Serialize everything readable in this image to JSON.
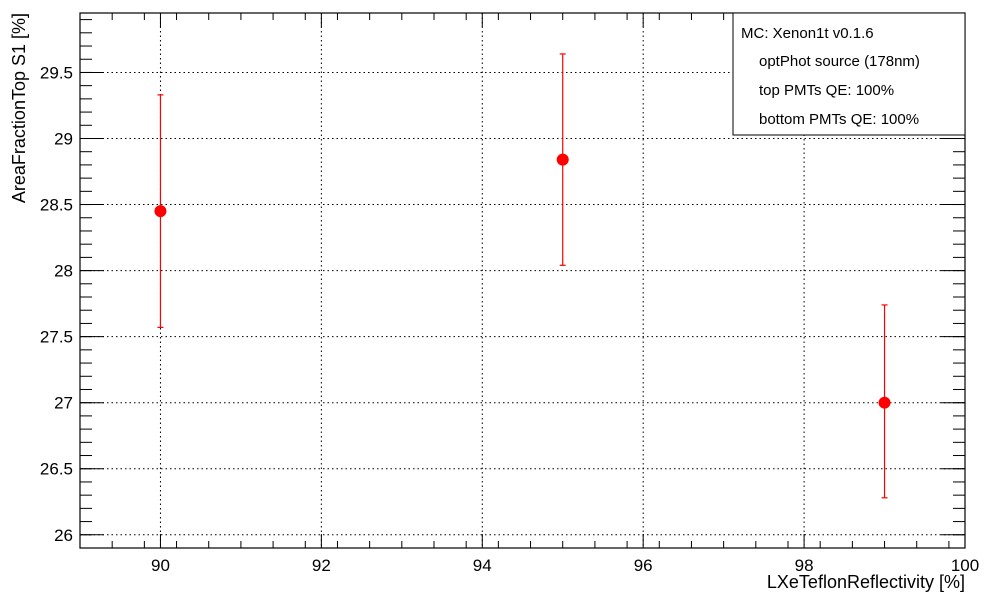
{
  "chart_data": {
    "type": "scatter",
    "xlabel": "LXeTeflonReflectivity [%]",
    "ylabel": "AreaFractionTop S1 [%]",
    "xlim": [
      89,
      100
    ],
    "ylim": [
      25.9,
      29.95
    ],
    "x_ticks": [
      90,
      92,
      94,
      96,
      98,
      100
    ],
    "x_tick_labels": [
      "90",
      "92",
      "94",
      "96",
      "98",
      "100"
    ],
    "y_ticks": [
      26,
      26.5,
      27,
      27.5,
      28,
      28.5,
      29,
      29.5
    ],
    "y_tick_labels": [
      "26",
      "26.5",
      "27",
      "27.5",
      "28",
      "28.5",
      "29",
      "29.5"
    ],
    "grid": true,
    "legend_position": "top-right",
    "legend_lines": [
      "MC: Xenon1t v0.1.6",
      "optPhot source (178nm)",
      "top PMTs QE: 100%",
      "bottom PMTs QE: 100%"
    ],
    "series": [
      {
        "x": [
          90,
          95,
          99
        ],
        "y": [
          28.45,
          28.84,
          27.0
        ],
        "y_err_low": [
          27.57,
          28.04,
          26.28
        ],
        "y_err_high": [
          29.33,
          29.64,
          27.74
        ],
        "color": "#ff0000"
      }
    ]
  }
}
